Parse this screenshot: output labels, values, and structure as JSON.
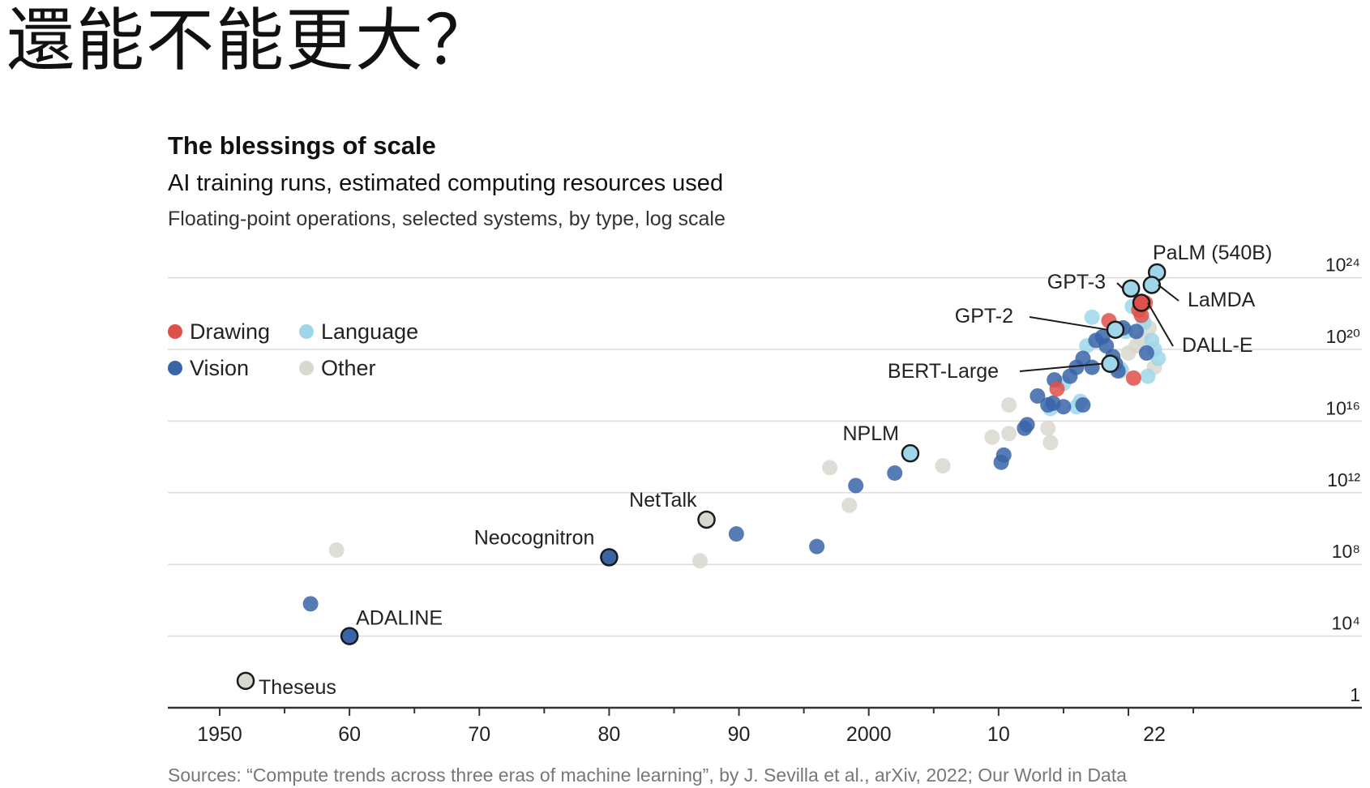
{
  "slide": {
    "title": "還能不能更大？"
  },
  "chart_data": {
    "type": "scatter",
    "title": "The blessings of scale",
    "subtitle": "AI training runs, estimated computing resources used",
    "note": "Floating-point operations, selected systems, by type, log scale",
    "source": "Sources: “Compute trends across three eras of machine learning”, by J. Sevilla et al., arXiv, 2022; Our World in Data",
    "x_ticks": [
      {
        "value": 1950,
        "label": "1950"
      },
      {
        "value": 1960,
        "label": "60"
      },
      {
        "value": 1970,
        "label": "70"
      },
      {
        "value": 1980,
        "label": "80"
      },
      {
        "value": 1990,
        "label": "90"
      },
      {
        "value": 2000,
        "label": "2000"
      },
      {
        "value": 2010,
        "label": "10"
      },
      {
        "value": 2022,
        "label": "22"
      }
    ],
    "y_ticks": [
      {
        "exp": 0,
        "label": "1"
      },
      {
        "exp": 4,
        "label": "10⁴"
      },
      {
        "exp": 8,
        "label": "10⁸"
      },
      {
        "exp": 12,
        "label": "10¹²"
      },
      {
        "exp": 16,
        "label": "10¹⁶"
      },
      {
        "exp": 20,
        "label": "10²⁰"
      },
      {
        "exp": 24,
        "label": "10²⁴"
      }
    ],
    "xlim": [
      1946,
      2038
    ],
    "ylim_log10": [
      0,
      25
    ],
    "grid": true,
    "legend_placement": "top-left",
    "colors": {
      "Drawing": "#e0504a",
      "Language": "#9fd6ea",
      "Vision": "#3a64a8",
      "Other": "#d9d8cf"
    },
    "series": [
      {
        "name": "Drawing",
        "points": [
          [
            2018.5,
            21.6
          ],
          [
            2020.4,
            18.4
          ],
          [
            2020.8,
            22.2
          ],
          [
            2021.3,
            22.6
          ],
          [
            2021.0,
            21.9
          ],
          [
            2014.5,
            17.8
          ]
        ]
      },
      {
        "name": "Language",
        "points": [
          [
            2003.2,
            14.2
          ],
          [
            2017.2,
            21.8
          ],
          [
            2016.8,
            20.2
          ],
          [
            2019.8,
            21.0
          ],
          [
            2020.3,
            22.4
          ],
          [
            2021.2,
            21.5
          ],
          [
            2019.4,
            18.9
          ],
          [
            2021.8,
            20.5
          ],
          [
            2022.3,
            19.5
          ],
          [
            2021.5,
            18.5
          ],
          [
            2016.0,
            16.8
          ],
          [
            2016.3,
            17.1
          ],
          [
            2014.0,
            16.7
          ],
          [
            2015.0,
            18.1
          ],
          [
            2020.2,
            23.4
          ],
          [
            2018.6,
            19.2
          ],
          [
            2022.0,
            20.0
          ]
        ]
      },
      {
        "name": "Vision",
        "points": [
          [
            1957.0,
            5.8
          ],
          [
            1960.0,
            4.0
          ],
          [
            1980.0,
            8.4
          ],
          [
            1989.8,
            9.7
          ],
          [
            1996.0,
            9.0
          ],
          [
            1999.0,
            12.4
          ],
          [
            2002.0,
            13.1
          ],
          [
            2010.2,
            13.7
          ],
          [
            2010.4,
            14.1
          ],
          [
            2012.2,
            15.8
          ],
          [
            2012.0,
            15.6
          ],
          [
            2013.0,
            17.4
          ],
          [
            2013.8,
            16.9
          ],
          [
            2014.2,
            17.0
          ],
          [
            2015.0,
            16.8
          ],
          [
            2016.5,
            16.9
          ],
          [
            2015.5,
            18.5
          ],
          [
            2016.0,
            19.0
          ],
          [
            2016.5,
            19.5
          ],
          [
            2017.5,
            20.5
          ],
          [
            2018.0,
            20.7
          ],
          [
            2018.3,
            20.2
          ],
          [
            2019.0,
            19.2
          ],
          [
            2019.2,
            18.8
          ],
          [
            2019.6,
            21.2
          ],
          [
            2020.6,
            21.0
          ],
          [
            2021.4,
            19.8
          ],
          [
            2014.3,
            18.3
          ],
          [
            2017.2,
            19.0
          ],
          [
            2018.8,
            19.6
          ]
        ]
      },
      {
        "name": "Other",
        "points": [
          [
            1952.0,
            1.5
          ],
          [
            1959.0,
            8.8
          ],
          [
            1987.0,
            8.2
          ],
          [
            1987.5,
            10.5
          ],
          [
            1997.0,
            13.4
          ],
          [
            1998.5,
            11.3
          ],
          [
            2005.7,
            13.5
          ],
          [
            2009.5,
            15.1
          ],
          [
            2010.8,
            15.3
          ],
          [
            2010.8,
            16.9
          ],
          [
            2014.0,
            14.8
          ],
          [
            2019.5,
            18.8
          ],
          [
            2021.0,
            20.6
          ],
          [
            2022.0,
            19.0
          ],
          [
            2020.6,
            20.2
          ],
          [
            2021.6,
            21.2
          ],
          [
            2020.0,
            19.8
          ],
          [
            2013.8,
            15.6
          ]
        ]
      }
    ],
    "annotations": [
      {
        "label": "Theseus",
        "x": 1952.0,
        "y": 1.5,
        "category": "Other"
      },
      {
        "label": "ADALINE",
        "x": 1960.0,
        "y": 4.0,
        "category": "Vision"
      },
      {
        "label": "Neocognitron",
        "x": 1980.0,
        "y": 8.4,
        "category": "Vision"
      },
      {
        "label": "NetTalk",
        "x": 1987.5,
        "y": 10.5,
        "category": "Other"
      },
      {
        "label": "NPLM",
        "x": 2003.2,
        "y": 14.2,
        "category": "Language"
      },
      {
        "label": "BERT-Large",
        "x": 2018.6,
        "y": 19.2,
        "category": "Language"
      },
      {
        "label": "GPT-2",
        "x": 2019.0,
        "y": 21.1,
        "category": "Language"
      },
      {
        "label": "GPT-3",
        "x": 2020.2,
        "y": 23.4,
        "category": "Language"
      },
      {
        "label": "PaLM (540B)",
        "x": 2022.2,
        "y": 24.3,
        "category": "Language"
      },
      {
        "label": "LaMDA",
        "x": 2021.8,
        "y": 23.6,
        "category": "Language"
      },
      {
        "label": "DALL-E",
        "x": 2021.0,
        "y": 22.6,
        "category": "Drawing"
      }
    ],
    "legend": [
      {
        "name": "Drawing"
      },
      {
        "name": "Language"
      },
      {
        "name": "Vision"
      },
      {
        "name": "Other"
      }
    ]
  }
}
